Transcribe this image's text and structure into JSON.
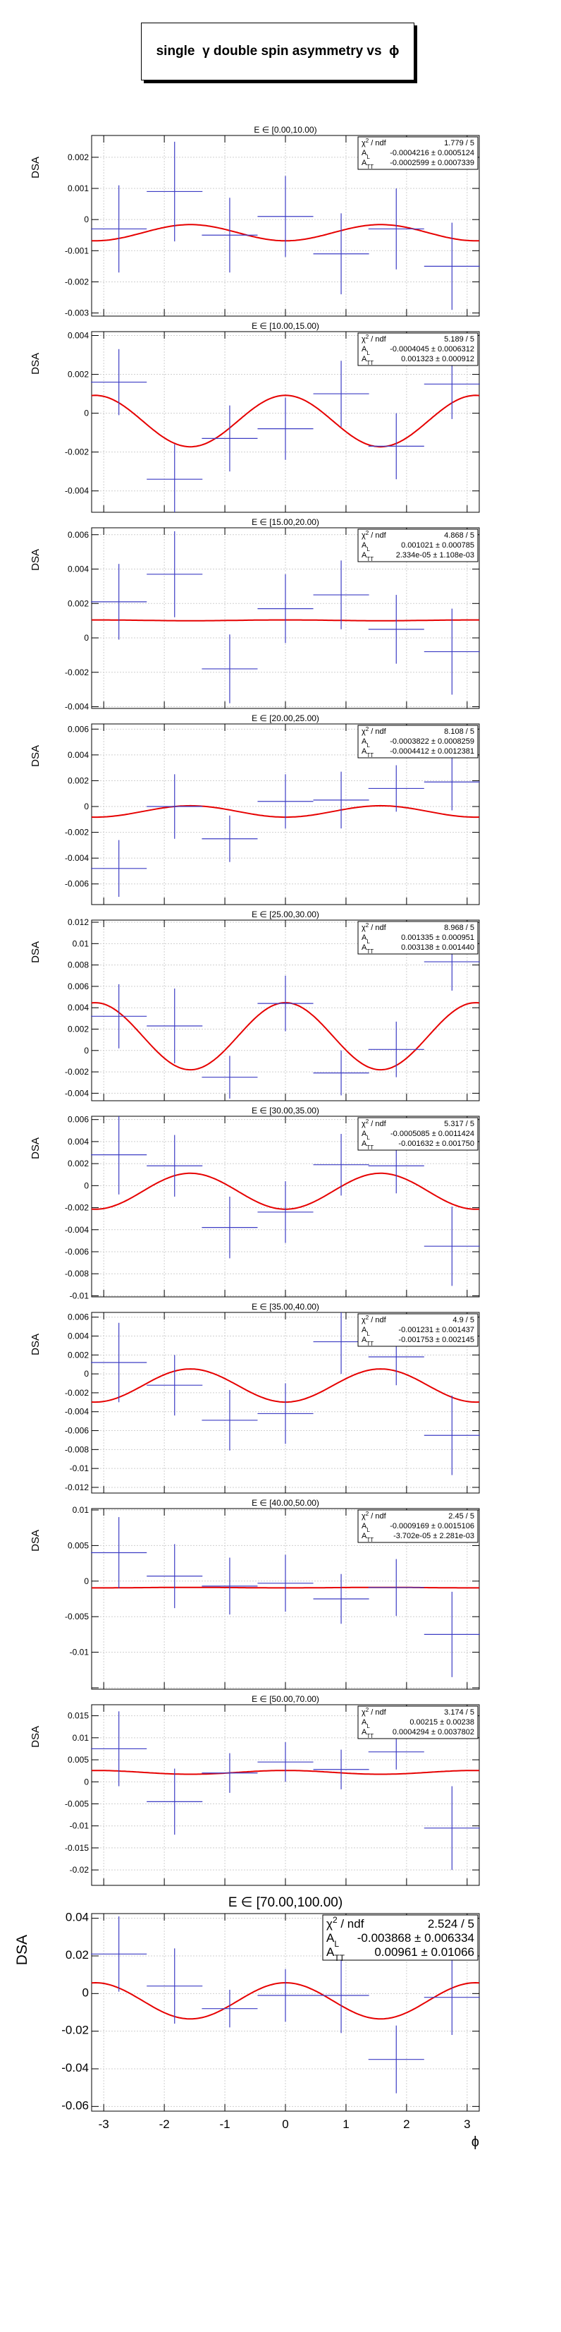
{
  "title": {
    "prefix": "single",
    "gamma": "γ",
    "middle": "double spin asymmetry vs",
    "phi": "ϕ"
  },
  "ylabel": "DSA",
  "xlabel": "ϕ",
  "colors": {
    "data": "#3d3dc4",
    "fit": "#e60000",
    "grid": "#cfcfcf"
  },
  "stat_labels": {
    "chi2": "χ",
    "chi2_sup": "2",
    "chi2_rest": " / ndf",
    "al": "A",
    "al_sub": "L",
    "att": "A",
    "att_sub": "TT"
  },
  "chart_data": [
    {
      "type": "scatter",
      "title": "E ∈ [0.00,10.00)",
      "xlim": [
        -3.2,
        3.2
      ],
      "ylim": [
        -0.0031,
        0.0027
      ],
      "yticks": [
        -0.003,
        -0.002,
        -0.001,
        0,
        0.001,
        0.002
      ],
      "ytick_labels": [
        "-0.003",
        "-0.002",
        "-0.001",
        "0",
        "0.001",
        "0.002"
      ],
      "x": [
        -2.75,
        -1.83,
        -0.92,
        0,
        0.92,
        1.83,
        2.75
      ],
      "y": [
        -0.0003,
        0.0009,
        -0.0005,
        0.0001,
        -0.0011,
        -0.0003,
        -0.0015
      ],
      "yerr": [
        0.0014,
        0.0016,
        0.0012,
        0.0013,
        0.0013,
        0.0013,
        0.0014
      ],
      "stats": {
        "chi2": "1.779 / 5",
        "al": "-0.0004216 ± 0.0005124",
        "att": "-0.0002599 ± 0.0007339"
      },
      "fit": {
        "al": -0.0004216,
        "att": -0.0002599
      }
    },
    {
      "type": "scatter",
      "title": "E ∈ [10.00,15.00)",
      "xlim": [
        -3.2,
        3.2
      ],
      "ylim": [
        -0.0051,
        0.0042
      ],
      "yticks": [
        -0.004,
        -0.002,
        0,
        0.002,
        0.004
      ],
      "ytick_labels": [
        "-0.004",
        "-0.002",
        "0",
        "0.002",
        "0.004"
      ],
      "x": [
        -2.75,
        -1.83,
        -0.92,
        0,
        0.92,
        1.83,
        2.75
      ],
      "y": [
        0.0016,
        -0.0034,
        -0.0013,
        -0.0008,
        0.001,
        -0.0017,
        0.0015
      ],
      "yerr": [
        0.0017,
        0.0018,
        0.0017,
        0.0016,
        0.0017,
        0.0017,
        0.0018
      ],
      "stats": {
        "chi2": "5.189 / 5",
        "al": "-0.0004045 ± 0.0006312",
        "att": "0.001323 ± 0.000912"
      },
      "fit": {
        "al": -0.0004045,
        "att": 0.001323
      }
    },
    {
      "type": "scatter",
      "title": "E ∈ [15.00,20.00)",
      "xlim": [
        -3.2,
        3.2
      ],
      "ylim": [
        -0.0041,
        0.0064
      ],
      "yticks": [
        -0.004,
        -0.002,
        0,
        0.002,
        0.004,
        0.006
      ],
      "ytick_labels": [
        "-0.004",
        "-0.002",
        "0",
        "0.002",
        "0.004",
        "0.006"
      ],
      "x": [
        -2.75,
        -1.83,
        -0.92,
        0,
        0.92,
        1.83,
        2.75
      ],
      "y": [
        0.0021,
        0.0037,
        -0.0018,
        0.0017,
        0.0025,
        0.0005,
        -0.0008
      ],
      "yerr": [
        0.0022,
        0.0025,
        0.002,
        0.002,
        0.002,
        0.002,
        0.0025
      ],
      "stats": {
        "chi2": "4.868 / 5",
        "al": "0.001021 ± 0.000785",
        "att": "2.334e-05 ± 1.108e-03"
      },
      "fit": {
        "al": 0.001021,
        "att": 2.334e-05
      }
    },
    {
      "type": "scatter",
      "title": "E ∈ [20.00,25.00)",
      "xlim": [
        -3.2,
        3.2
      ],
      "ylim": [
        -0.0076,
        0.0064
      ],
      "yticks": [
        -0.006,
        -0.004,
        -0.002,
        0,
        0.002,
        0.004,
        0.006
      ],
      "ytick_labels": [
        "-0.006",
        "-0.004",
        "-0.002",
        "0",
        "0.002",
        "0.004",
        "0.006"
      ],
      "x": [
        -2.75,
        -1.83,
        -0.92,
        0,
        0.92,
        1.83,
        2.75
      ],
      "y": [
        -0.0048,
        0.0,
        -0.0025,
        0.0004,
        0.0005,
        0.0014,
        0.0019
      ],
      "yerr": [
        0.0022,
        0.0025,
        0.0018,
        0.0021,
        0.0022,
        0.0018,
        0.0022
      ],
      "stats": {
        "chi2": "8.108 / 5",
        "al": "-0.0003822 ± 0.0008259",
        "att": "-0.0004412 ± 0.0012381"
      },
      "fit": {
        "al": -0.0003822,
        "att": -0.0004412
      }
    },
    {
      "type": "scatter",
      "title": "E ∈ [25.00,30.00)",
      "xlim": [
        -3.2,
        3.2
      ],
      "ylim": [
        -0.0047,
        0.0122
      ],
      "yticks": [
        -0.004,
        -0.002,
        0,
        0.002,
        0.004,
        0.006,
        0.008,
        0.01,
        0.012
      ],
      "ytick_labels": [
        "-0.004",
        "-0.002",
        "0",
        "0.002",
        "0.004",
        "0.006",
        "0.008",
        "0.01",
        "0.012"
      ],
      "x": [
        -2.75,
        -1.83,
        -0.92,
        0,
        0.92,
        1.83,
        2.75
      ],
      "y": [
        0.0032,
        0.0023,
        -0.0025,
        0.0044,
        -0.0021,
        0.0001,
        0.0083
      ],
      "yerr": [
        0.003,
        0.0035,
        0.002,
        0.0026,
        0.0021,
        0.0026,
        0.0027
      ],
      "stats": {
        "chi2": "8.968 / 5",
        "al": "0.001335 ± 0.000951",
        "att": "0.003138 ± 0.001440"
      },
      "fit": {
        "al": 0.001335,
        "att": 0.003138
      }
    },
    {
      "type": "scatter",
      "title": "E ∈ [30.00,35.00)",
      "xlim": [
        -3.2,
        3.2
      ],
      "ylim": [
        -0.0101,
        0.0063
      ],
      "yticks": [
        -0.01,
        -0.008,
        -0.006,
        -0.004,
        -0.002,
        0,
        0.002,
        0.004,
        0.006
      ],
      "ytick_labels": [
        "-0.01",
        "-0.008",
        "-0.006",
        "-0.004",
        "-0.002",
        "0",
        "0.002",
        "0.004",
        "0.006"
      ],
      "x": [
        -2.75,
        -1.83,
        -0.92,
        0,
        0.92,
        1.83,
        2.75
      ],
      "y": [
        0.0028,
        0.0018,
        -0.0038,
        -0.0024,
        0.0019,
        0.0018,
        -0.0055
      ],
      "yerr": [
        0.0036,
        0.0028,
        0.0028,
        0.0028,
        0.0028,
        0.0025,
        0.0036
      ],
      "stats": {
        "chi2": "5.317 / 5",
        "al": "-0.0005085 ± 0.0011424",
        "att": "-0.001632 ± 0.001750"
      },
      "fit": {
        "al": -0.0005085,
        "att": -0.001632
      }
    },
    {
      "type": "scatter",
      "title": "E ∈ [35.00,40.00)",
      "xlim": [
        -3.2,
        3.2
      ],
      "ylim": [
        -0.0126,
        0.0065
      ],
      "yticks": [
        -0.012,
        -0.01,
        -0.008,
        -0.006,
        -0.004,
        -0.002,
        0,
        0.002,
        0.004,
        0.006
      ],
      "ytick_labels": [
        "-0.012",
        "-0.01",
        "-0.008",
        "-0.006",
        "-0.004",
        "-0.002",
        "0",
        "0.002",
        "0.004",
        "0.006"
      ],
      "x": [
        -2.75,
        -1.83,
        -0.92,
        0,
        0.92,
        1.83,
        2.75
      ],
      "y": [
        0.0012,
        -0.0012,
        -0.0049,
        -0.0042,
        0.0034,
        0.0018,
        -0.0065
      ],
      "yerr": [
        0.0042,
        0.0032,
        0.0032,
        0.0032,
        0.0034,
        0.003,
        0.0042
      ],
      "stats": {
        "chi2": "4.9 / 5",
        "al": "-0.001231 ± 0.001437",
        "att": "-0.001753 ± 0.002145"
      },
      "fit": {
        "al": -0.001231,
        "att": -0.001753
      }
    },
    {
      "type": "scatter",
      "title": "E ∈ [40.00,50.00)",
      "xlim": [
        -3.2,
        3.2
      ],
      "ylim": [
        -0.0152,
        0.0102
      ],
      "yticks": [
        -0.015,
        -0.01,
        -0.005,
        0,
        0.005,
        0.01
      ],
      "ytick_labels": [
        "",
        "-0.01",
        "-0.005",
        "0",
        "0.005",
        "0.01"
      ],
      "x": [
        -2.75,
        -1.83,
        -0.92,
        0,
        0.92,
        1.83,
        2.75
      ],
      "y": [
        0.004,
        0.0007,
        -0.0007,
        -0.0003,
        -0.0025,
        -0.0009,
        -0.0075
      ],
      "yerr": [
        0.005,
        0.0045,
        0.004,
        0.004,
        0.0035,
        0.004,
        0.006
      ],
      "stats": {
        "chi2": "2.45 / 5",
        "al": "-0.0009169 ± 0.0015106",
        "att": "-3.702e-05 ± 2.281e-03"
      },
      "fit": {
        "al": -0.0009169,
        "att": -3.702e-05
      }
    },
    {
      "type": "scatter",
      "title": "E ∈ [50.00,70.00)",
      "xlim": [
        -3.2,
        3.2
      ],
      "ylim": [
        -0.0235,
        0.0175
      ],
      "yticks": [
        -0.02,
        -0.015,
        -0.01,
        -0.005,
        0,
        0.005,
        0.01,
        0.015
      ],
      "ytick_labels": [
        "-0.02",
        "-0.015",
        "-0.01",
        "-0.005",
        "0",
        "0.005",
        "0.01",
        "0.015"
      ],
      "x": [
        -2.75,
        -1.83,
        -0.92,
        0,
        0.92,
        1.83,
        2.75
      ],
      "y": [
        0.0075,
        -0.0045,
        0.002,
        0.0045,
        0.0028,
        0.0068,
        -0.0105
      ],
      "yerr": [
        0.0085,
        0.0075,
        0.0045,
        0.0045,
        0.0045,
        0.004,
        0.0095
      ],
      "stats": {
        "chi2": "3.174 / 5",
        "al": "0.00215 ± 0.00238",
        "att": "0.0004294 ± 0.0037802"
      },
      "fit": {
        "al": 0.00215,
        "att": 0.0004294
      }
    },
    {
      "type": "scatter",
      "title": "E ∈ [70.00,100.00)",
      "xlim": [
        -3.2,
        3.2
      ],
      "ylim": [
        -0.0625,
        0.0425
      ],
      "yticks": [
        -0.06,
        -0.04,
        -0.02,
        0,
        0.02,
        0.04
      ],
      "ytick_labels": [
        "-0.06",
        "-0.04",
        "-0.02",
        "0",
        "0.02",
        "0.04"
      ],
      "x": [
        -2.75,
        -1.83,
        -0.92,
        0,
        0.92,
        1.83,
        2.75
      ],
      "y": [
        0.021,
        0.004,
        -0.008,
        -0.001,
        -0.001,
        -0.035,
        -0.002
      ],
      "yerr": [
        0.02,
        0.02,
        0.01,
        0.014,
        0.02,
        0.018,
        0.02
      ],
      "stats": {
        "chi2": "2.524 / 5",
        "al": "-0.003868 ± 0.006334",
        "att": "0.00961 ± 0.01066"
      },
      "fit": {
        "al": -0.003868,
        "att": 0.00961
      }
    }
  ],
  "xticks": [
    -3,
    -2,
    -1,
    0,
    1,
    2,
    3
  ],
  "xtick_labels": [
    "-3",
    "-2",
    "-1",
    "0",
    "1",
    "2",
    "3"
  ]
}
